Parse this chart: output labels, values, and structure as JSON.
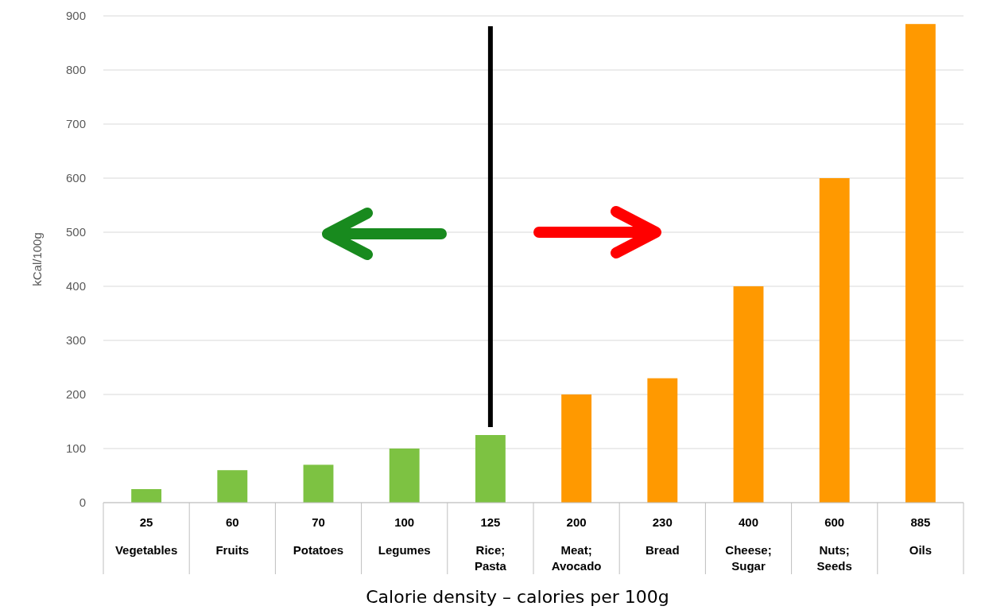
{
  "chart_data": {
    "type": "bar",
    "title": "Calorie density – calories per 100g",
    "ylabel": "kCal/100g",
    "categories": [
      "Vegetables",
      "Fruits",
      "Potatoes",
      "Legumes",
      "Rice; Pasta",
      "Meat; Avocado",
      "Bread",
      "Cheese; Sugar",
      "Nuts; Seeds",
      "Oils"
    ],
    "values": [
      25,
      60,
      70,
      100,
      125,
      200,
      230,
      400,
      600,
      885
    ],
    "colors": [
      "#7dc242",
      "#7dc242",
      "#7dc242",
      "#7dc242",
      "#7dc242",
      "#ff9900",
      "#ff9900",
      "#ff9900",
      "#ff9900",
      "#ff9900"
    ],
    "ylim": [
      0,
      900
    ],
    "yticks": [
      0,
      100,
      200,
      300,
      400,
      500,
      600,
      700,
      800,
      900
    ],
    "grid": "y",
    "data_labels": true,
    "ref_lines": [
      {
        "axis": "x",
        "value": "Rice; Pasta",
        "color": "#000000"
      }
    ]
  }
}
